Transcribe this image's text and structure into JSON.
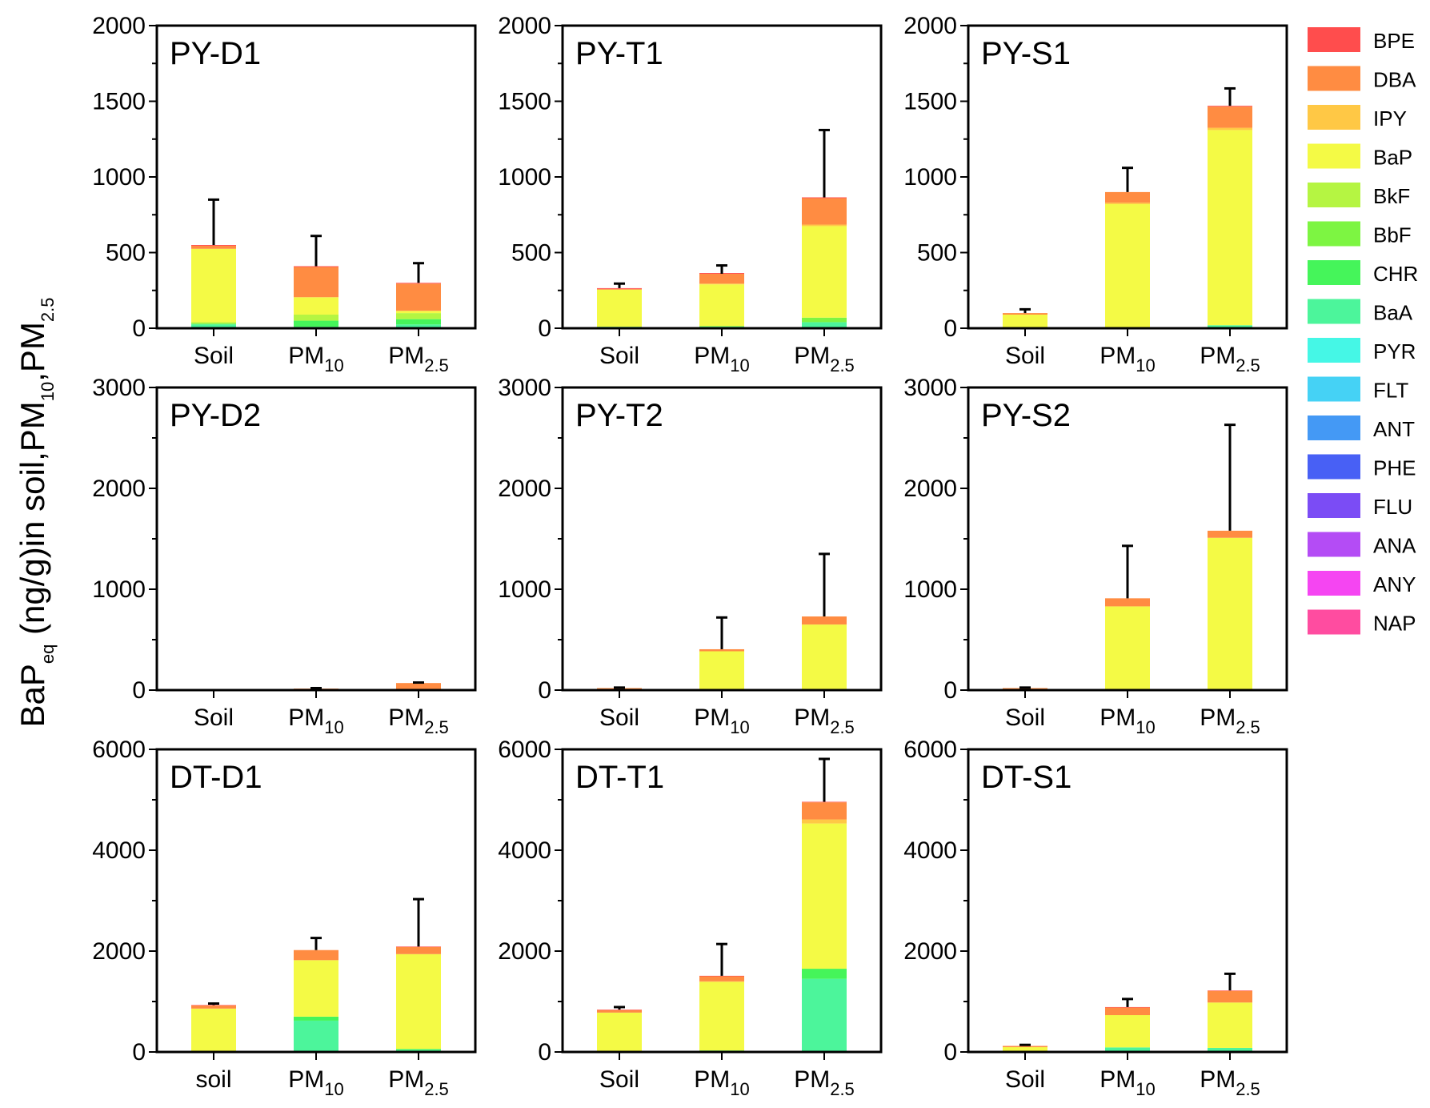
{
  "figure": {
    "ylabel": {
      "main": "BaP",
      "eq": "eq",
      "mid": " (ng/g)in soil,PM",
      "ten": "10",
      "comma": ",PM",
      "two5": "2.5"
    }
  },
  "legend": {
    "entries": [
      {
        "name": "BPE",
        "color": "#ff4d4d"
      },
      {
        "name": "DBA",
        "color": "#ff8c42"
      },
      {
        "name": "IPY",
        "color": "#ffc845"
      },
      {
        "name": "BaP",
        "color": "#f4fa45"
      },
      {
        "name": "BkF",
        "color": "#b5f542"
      },
      {
        "name": "BbF",
        "color": "#7df542"
      },
      {
        "name": "CHR",
        "color": "#45f55a"
      },
      {
        "name": "BaA",
        "color": "#4cf59b"
      },
      {
        "name": "PYR",
        "color": "#45f7e6"
      },
      {
        "name": "FLT",
        "color": "#45d2f5"
      },
      {
        "name": "ANT",
        "color": "#4499f5"
      },
      {
        "name": "PHE",
        "color": "#4860f5"
      },
      {
        "name": "FLU",
        "color": "#7b4cf5"
      },
      {
        "name": "ANA",
        "color": "#b44cf5"
      },
      {
        "name": "ANY",
        "color": "#f545f2"
      },
      {
        "name": "NAP",
        "color": "#ff4ca0"
      }
    ]
  },
  "chart_data": [
    {
      "type": "bar",
      "title": "PY-D1",
      "categories": [
        {
          "text": "Soil",
          "base": "Soil",
          "sub": ""
        },
        {
          "text": "PM10",
          "base": "PM",
          "sub": "10"
        },
        {
          "text": "PM2.5",
          "base": "PM",
          "sub": "2.5"
        }
      ],
      "ylim": [
        0,
        2000
      ],
      "yticks": [
        "0",
        "500",
        "1000",
        "1500",
        "2000"
      ],
      "series": [
        {
          "name": "BaA",
          "values": [
            25,
            10,
            25
          ]
        },
        {
          "name": "CHR",
          "values": [
            5,
            40,
            35
          ]
        },
        {
          "name": "BkF",
          "values": [
            10,
            40,
            40
          ]
        },
        {
          "name": "BaP",
          "values": [
            485,
            115,
            15
          ]
        },
        {
          "name": "DBA",
          "values": [
            20,
            200,
            180
          ]
        },
        {
          "name": "BPE",
          "values": [
            5,
            5,
            5
          ]
        }
      ],
      "totals": [
        550,
        410,
        300
      ],
      "errors": [
        850,
        610,
        430
      ]
    },
    {
      "type": "bar",
      "title": "PY-T1",
      "categories": [
        {
          "text": "Soil",
          "base": "Soil",
          "sub": ""
        },
        {
          "text": "PM10",
          "base": "PM",
          "sub": "10"
        },
        {
          "text": "PM2.5",
          "base": "PM",
          "sub": "2.5"
        }
      ],
      "ylim": [
        0,
        2000
      ],
      "yticks": [
        "0",
        "500",
        "1000",
        "1500",
        "2000"
      ],
      "series": [
        {
          "name": "BaA",
          "values": [
            10,
            10,
            40
          ]
        },
        {
          "name": "BbF",
          "values": [
            0,
            5,
            30
          ]
        },
        {
          "name": "BaP",
          "values": [
            245,
            275,
            605
          ]
        },
        {
          "name": "IPY",
          "values": [
            0,
            5,
            10
          ]
        },
        {
          "name": "DBA",
          "values": [
            5,
            65,
            175
          ]
        },
        {
          "name": "BPE",
          "values": [
            5,
            5,
            5
          ]
        }
      ],
      "totals": [
        265,
        360,
        865
      ],
      "errors": [
        295,
        415,
        1310
      ]
    },
    {
      "type": "bar",
      "title": "PY-S1",
      "categories": [
        {
          "text": "Soil",
          "base": "Soil",
          "sub": ""
        },
        {
          "text": "PM10",
          "base": "PM",
          "sub": "10"
        },
        {
          "text": "PM2.5",
          "base": "PM",
          "sub": "2.5"
        }
      ],
      "ylim": [
        0,
        2000
      ],
      "yticks": [
        "0",
        "500",
        "1000",
        "1500",
        "2000"
      ],
      "series": [
        {
          "name": "BaA",
          "values": [
            5,
            5,
            20
          ]
        },
        {
          "name": "BaP",
          "values": [
            85,
            815,
            1290
          ]
        },
        {
          "name": "IPY",
          "values": [
            0,
            10,
            15
          ]
        },
        {
          "name": "DBA",
          "values": [
            10,
            70,
            140
          ]
        },
        {
          "name": "BPE",
          "values": [
            0,
            0,
            5
          ]
        }
      ],
      "totals": [
        100,
        900,
        1470
      ],
      "errors": [
        125,
        1060,
        1585
      ]
    },
    {
      "type": "bar",
      "title": "PY-D2",
      "categories": [
        {
          "text": "Soil",
          "base": "Soil",
          "sub": ""
        },
        {
          "text": "PM10",
          "base": "PM",
          "sub": "10"
        },
        {
          "text": "PM2.5",
          "base": "PM",
          "sub": "2.5"
        }
      ],
      "ylim": [
        0,
        3000
      ],
      "yticks": [
        "0",
        "1000",
        "2000",
        "3000"
      ],
      "series": [
        {
          "name": "BaP",
          "values": [
            0,
            5,
            10
          ]
        },
        {
          "name": "DBA",
          "values": [
            0,
            10,
            60
          ]
        }
      ],
      "totals": [
        0,
        15,
        70
      ],
      "errors": [
        0,
        20,
        75
      ]
    },
    {
      "type": "bar",
      "title": "PY-T2",
      "categories": [
        {
          "text": "Soil",
          "base": "Soil",
          "sub": ""
        },
        {
          "text": "PM10",
          "base": "PM",
          "sub": "10"
        },
        {
          "text": "PM2.5",
          "base": "PM",
          "sub": "2.5"
        }
      ],
      "ylim": [
        0,
        3000
      ],
      "yticks": [
        "0",
        "1000",
        "2000",
        "3000"
      ],
      "series": [
        {
          "name": "BaP",
          "values": [
            10,
            385,
            650
          ]
        },
        {
          "name": "DBA",
          "values": [
            10,
            20,
            80
          ]
        }
      ],
      "totals": [
        20,
        405,
        730
      ],
      "errors": [
        25,
        720,
        1350
      ]
    },
    {
      "type": "bar",
      "title": "PY-S2",
      "categories": [
        {
          "text": "Soil",
          "base": "Soil",
          "sub": ""
        },
        {
          "text": "PM10",
          "base": "PM",
          "sub": "10"
        },
        {
          "text": "PM2.5",
          "base": "PM",
          "sub": "2.5"
        }
      ],
      "ylim": [
        0,
        3000
      ],
      "yticks": [
        "0",
        "1000",
        "2000",
        "3000"
      ],
      "series": [
        {
          "name": "BaP",
          "values": [
            10,
            830,
            1510
          ]
        },
        {
          "name": "DBA",
          "values": [
            10,
            80,
            70
          ]
        }
      ],
      "totals": [
        20,
        910,
        1580
      ],
      "errors": [
        25,
        1430,
        2630
      ]
    },
    {
      "type": "bar",
      "title": "DT-D1",
      "categories": [
        {
          "text": "soil",
          "base": "soil",
          "sub": ""
        },
        {
          "text": "PM10",
          "base": "PM",
          "sub": "10"
        },
        {
          "text": "PM2.5",
          "base": "PM",
          "sub": "2.5"
        }
      ],
      "ylim": [
        0,
        6000
      ],
      "yticks": [
        "0",
        "2000",
        "4000",
        "6000"
      ],
      "series": [
        {
          "name": "BaA",
          "values": [
            10,
            620,
            40
          ]
        },
        {
          "name": "CHR",
          "values": [
            0,
            80,
            20
          ]
        },
        {
          "name": "BaP",
          "values": [
            850,
            1120,
            1880
          ]
        },
        {
          "name": "DBA",
          "values": [
            60,
            200,
            140
          ]
        },
        {
          "name": "BPE",
          "values": [
            10,
            0,
            10
          ]
        }
      ],
      "totals": [
        930,
        2020,
        2090
      ],
      "errors": [
        960,
        2260,
        3030
      ]
    },
    {
      "type": "bar",
      "title": "DT-T1",
      "categories": [
        {
          "text": "Soil",
          "base": "Soil",
          "sub": ""
        },
        {
          "text": "PM10",
          "base": "PM",
          "sub": "10"
        },
        {
          "text": "PM2.5",
          "base": "PM",
          "sub": "2.5"
        }
      ],
      "ylim": [
        0,
        6000
      ],
      "yticks": [
        "0",
        "2000",
        "4000",
        "6000"
      ],
      "series": [
        {
          "name": "BaA",
          "values": [
            20,
            20,
            1450
          ]
        },
        {
          "name": "CHR",
          "values": [
            0,
            10,
            200
          ]
        },
        {
          "name": "BaP",
          "values": [
            760,
            1360,
            2880
          ]
        },
        {
          "name": "IPY",
          "values": [
            0,
            10,
            80
          ]
        },
        {
          "name": "DBA",
          "values": [
            50,
            100,
            340
          ]
        },
        {
          "name": "BPE",
          "values": [
            10,
            10,
            10
          ]
        }
      ],
      "totals": [
        840,
        1510,
        4960
      ],
      "errors": [
        890,
        2140,
        5810
      ]
    },
    {
      "type": "bar",
      "title": "DT-S1",
      "categories": [
        {
          "text": "Soil",
          "base": "Soil",
          "sub": ""
        },
        {
          "text": "PM10",
          "base": "PM",
          "sub": "10"
        },
        {
          "text": "PM2.5",
          "base": "PM",
          "sub": "2.5"
        }
      ],
      "ylim": [
        0,
        6000
      ],
      "yticks": [
        "0",
        "2000",
        "4000",
        "6000"
      ],
      "series": [
        {
          "name": "BaA",
          "values": [
            5,
            90,
            80
          ]
        },
        {
          "name": "BaP",
          "values": [
            90,
            640,
            900
          ]
        },
        {
          "name": "DBA",
          "values": [
            25,
            150,
            230
          ]
        },
        {
          "name": "BPE",
          "values": [
            0,
            10,
            10
          ]
        }
      ],
      "totals": [
        120,
        890,
        1220
      ],
      "errors": [
        140,
        1050,
        1550
      ]
    }
  ]
}
